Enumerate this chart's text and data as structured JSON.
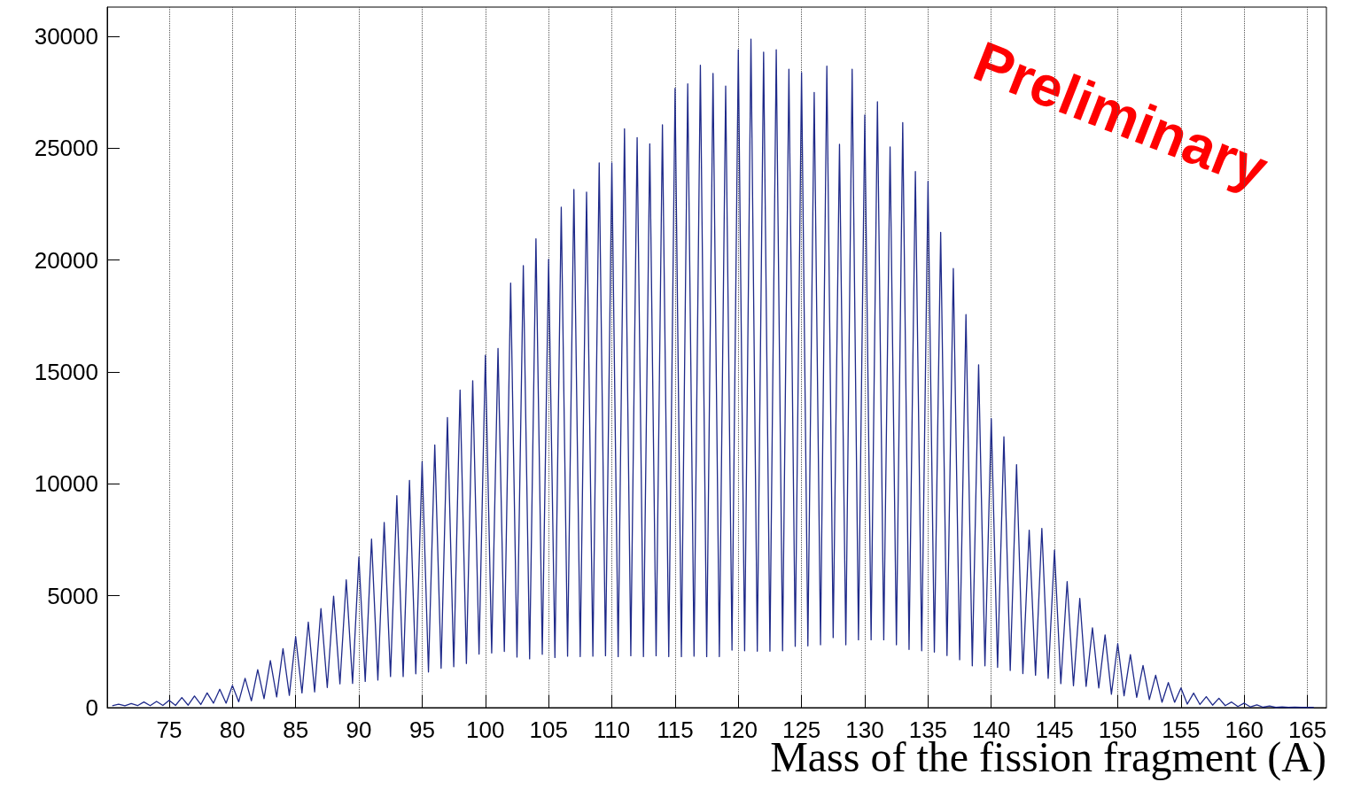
{
  "chart_data": {
    "type": "line",
    "xlabel": "Mass of the fission fragment (A)",
    "annotations": [
      "Preliminary"
    ],
    "xlim": [
      70.1,
      166.5
    ],
    "xticks": [
      75,
      80,
      85,
      90,
      95,
      100,
      105,
      110,
      115,
      120,
      125,
      130,
      135,
      140,
      145,
      150,
      155,
      160,
      165
    ],
    "ylim": [
      0,
      31300
    ],
    "yticks": [
      0,
      5000,
      10000,
      15000,
      20000,
      25000,
      30000
    ],
    "grid": "x",
    "marker": "none",
    "line_style": "solid",
    "series": [
      {
        "color": "#1f2a8a",
        "x": [
          70.5,
          71,
          71.5,
          72,
          72.5,
          73,
          73.5,
          74,
          74.5,
          75,
          75.5,
          76,
          76.5,
          77,
          77.5,
          78,
          78.5,
          79,
          79.5,
          80,
          80.5,
          81,
          81.5,
          82,
          82.5,
          83,
          83.5,
          84,
          84.5,
          85,
          85.5,
          86,
          86.5,
          87,
          87.5,
          88,
          88.5,
          89,
          89.5,
          90,
          90.5,
          91,
          91.5,
          92,
          92.5,
          93,
          93.5,
          94,
          94.5,
          95,
          95.5,
          96,
          96.5,
          97,
          97.5,
          98,
          98.5,
          99,
          99.5,
          100,
          100.5,
          101,
          101.5,
          102,
          102.5,
          103,
          103.5,
          104,
          104.5,
          105,
          105.5,
          106,
          106.5,
          107,
          107.5,
          108,
          108.5,
          109,
          109.5,
          110,
          110.5,
          111,
          111.5,
          112,
          112.5,
          113,
          113.5,
          114,
          114.5,
          115,
          115.5,
          116,
          116.5,
          117,
          117.5,
          118,
          118.5,
          119,
          119.5,
          120,
          120.5,
          121,
          121.5,
          122,
          122.5,
          123,
          123.5,
          124,
          124.5,
          125,
          125.5,
          126,
          126.5,
          127,
          127.5,
          128,
          128.5,
          129,
          129.5,
          130,
          130.5,
          131,
          131.5,
          132,
          132.5,
          133,
          133.5,
          134,
          134.5,
          135,
          135.5,
          136,
          136.5,
          137,
          137.5,
          138,
          138.5,
          139,
          139.5,
          140,
          140.5,
          141,
          141.5,
          142,
          142.5,
          143,
          143.5,
          144,
          144.5,
          145,
          145.5,
          146,
          146.5,
          147,
          147.5,
          148,
          148.5,
          149,
          149.5,
          150,
          150.5,
          151,
          151.5,
          152,
          152.5,
          153,
          153.5,
          154,
          154.5,
          155,
          155.5,
          156,
          156.5,
          157,
          157.5,
          158,
          158.5,
          159,
          159.5,
          160,
          160.5,
          161,
          161.5,
          162,
          162.5,
          163,
          163.5,
          164,
          164.5,
          165,
          165.5
        ],
        "values": [
          80,
          150,
          80,
          180,
          90,
          250,
          90,
          280,
          100,
          330,
          100,
          450,
          110,
          520,
          140,
          660,
          200,
          820,
          200,
          990,
          260,
          1310,
          300,
          1700,
          400,
          2100,
          480,
          2640,
          550,
          3170,
          660,
          3820,
          700,
          4430,
          900,
          4980,
          1060,
          5710,
          1080,
          6730,
          1170,
          7530,
          1230,
          8270,
          1390,
          9470,
          1390,
          10150,
          1510,
          10980,
          1590,
          11740,
          1760,
          12960,
          1830,
          14190,
          1970,
          14610,
          2390,
          15740,
          2440,
          16050,
          2510,
          18970,
          2260,
          19750,
          2180,
          20950,
          2380,
          20030,
          2240,
          22360,
          2300,
          23150,
          2280,
          23030,
          2300,
          24340,
          2320,
          24340,
          2280,
          25860,
          2320,
          25470,
          2280,
          25190,
          2320,
          26040,
          2280,
          27670,
          2280,
          27870,
          2300,
          28700,
          2280,
          28340,
          2280,
          27770,
          2570,
          29390,
          2540,
          29870,
          2520,
          29290,
          2520,
          29390,
          2540,
          28520,
          2740,
          28380,
          2760,
          27490,
          2810,
          28660,
          3130,
          25170,
          2810,
          28520,
          3030,
          26480,
          3030,
          27070,
          3030,
          25050,
          2810,
          26140,
          2600,
          23950,
          2540,
          23510,
          2480,
          21230,
          2330,
          19620,
          2140,
          17560,
          1870,
          15320,
          1870,
          12910,
          1800,
          12100,
          1660,
          10860,
          1520,
          7930,
          1450,
          8010,
          1310,
          7040,
          1070,
          5630,
          980,
          4880,
          950,
          3570,
          880,
          3250,
          600,
          2860,
          530,
          2370,
          460,
          1880,
          360,
          1450,
          240,
          1120,
          240,
          880,
          160,
          650,
          140,
          490,
          110,
          420,
          90,
          250,
          50,
          200,
          30,
          120,
          20,
          70,
          10,
          30,
          10,
          20,
          10,
          10,
          10
        ]
      }
    ]
  }
}
